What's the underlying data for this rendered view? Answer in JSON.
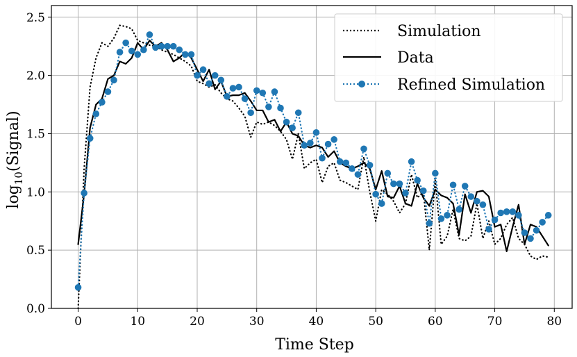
{
  "chart_data": {
    "type": "line",
    "title": "",
    "xlabel": "Time Step",
    "ylabel_main": "log",
    "ylabel_sub": "10",
    "ylabel_rest": "(Signal)",
    "xlim": [
      -4.5,
      83
    ],
    "ylim": [
      0,
      2.6
    ],
    "xticks": [
      0,
      10,
      20,
      30,
      40,
      50,
      60,
      70,
      80
    ],
    "xtick_labels": [
      "0",
      "10",
      "20",
      "30",
      "40",
      "50",
      "60",
      "70",
      "80"
    ],
    "yticks": [
      0.0,
      0.5,
      1.0,
      1.5,
      2.0,
      2.5
    ],
    "ytick_labels": [
      "0.0",
      "0.5",
      "1.0",
      "1.5",
      "2.0",
      "2.5"
    ],
    "grid": true,
    "legend_position": "top-right",
    "series": [
      {
        "name": "Simulation",
        "style": "dotted",
        "color": "#000000",
        "marker": false,
        "values": [
          0.0,
          1.2,
          1.9,
          2.15,
          2.28,
          2.25,
          2.32,
          2.43,
          2.42,
          2.4,
          2.3,
          2.28,
          2.26,
          2.25,
          2.22,
          2.2,
          2.18,
          2.15,
          2.12,
          2.08,
          1.95,
          1.93,
          1.9,
          1.92,
          1.85,
          1.8,
          1.78,
          1.72,
          1.65,
          1.47,
          1.6,
          1.58,
          1.6,
          1.57,
          1.52,
          1.45,
          1.28,
          1.5,
          1.2,
          1.25,
          1.28,
          1.08,
          1.22,
          1.25,
          1.1,
          1.08,
          1.05,
          1.02,
          1.3,
          1.0,
          0.75,
          1.02,
          0.98,
          0.92,
          0.82,
          0.9,
          1.15,
          0.95,
          1.0,
          0.5,
          1.1,
          0.55,
          0.62,
          0.85,
          0.6,
          0.58,
          0.62,
          0.9,
          0.6,
          0.75,
          0.55,
          0.6,
          0.72,
          0.78,
          0.6,
          0.55,
          0.45,
          0.42,
          0.45,
          0.44
        ]
      },
      {
        "name": "Data",
        "style": "solid",
        "color": "#000000",
        "marker": false,
        "values": [
          0.55,
          0.98,
          1.55,
          1.75,
          1.8,
          1.97,
          2.0,
          2.12,
          2.1,
          2.15,
          2.28,
          2.22,
          2.3,
          2.25,
          2.28,
          2.22,
          2.12,
          2.15,
          2.2,
          2.15,
          2.05,
          1.95,
          2.05,
          1.88,
          1.95,
          1.82,
          1.83,
          1.83,
          1.85,
          1.78,
          1.7,
          1.7,
          1.6,
          1.62,
          1.52,
          1.6,
          1.5,
          1.48,
          1.4,
          1.38,
          1.4,
          1.38,
          1.3,
          1.35,
          1.25,
          1.22,
          1.2,
          1.22,
          1.25,
          1.2,
          1.02,
          1.18,
          0.96,
          0.95,
          1.05,
          0.9,
          0.88,
          1.07,
          0.95,
          0.88,
          1.02,
          0.97,
          0.95,
          0.9,
          0.63,
          0.98,
          0.82,
          1.0,
          1.01,
          0.96,
          0.7,
          0.72,
          0.49,
          0.7,
          0.89,
          0.55,
          0.72,
          0.7,
          0.62,
          0.54
        ]
      },
      {
        "name": "Refined Simulation",
        "style": "dotted",
        "color": "#1f77b4",
        "marker": true,
        "values": [
          0.18,
          0.99,
          1.46,
          1.67,
          1.77,
          1.86,
          1.96,
          2.2,
          2.28,
          2.21,
          2.18,
          2.22,
          2.35,
          2.24,
          2.25,
          2.25,
          2.25,
          2.22,
          2.18,
          2.18,
          2.0,
          2.05,
          1.93,
          2.0,
          1.96,
          1.82,
          1.89,
          1.9,
          1.8,
          1.68,
          1.87,
          1.85,
          1.73,
          1.86,
          1.72,
          1.6,
          1.55,
          1.68,
          1.4,
          1.42,
          1.51,
          1.29,
          1.41,
          1.45,
          1.26,
          1.25,
          1.2,
          1.15,
          1.37,
          1.23,
          0.98,
          0.9,
          1.16,
          1.07,
          1.07,
          0.99,
          1.26,
          1.1,
          1.01,
          0.73,
          1.16,
          0.77,
          0.8,
          1.06,
          0.85,
          1.05,
          0.96,
          0.92,
          0.89,
          0.68,
          0.76,
          0.82,
          0.83,
          0.83,
          0.8,
          0.65,
          0.6,
          0.67,
          0.74,
          0.8
        ]
      }
    ]
  }
}
